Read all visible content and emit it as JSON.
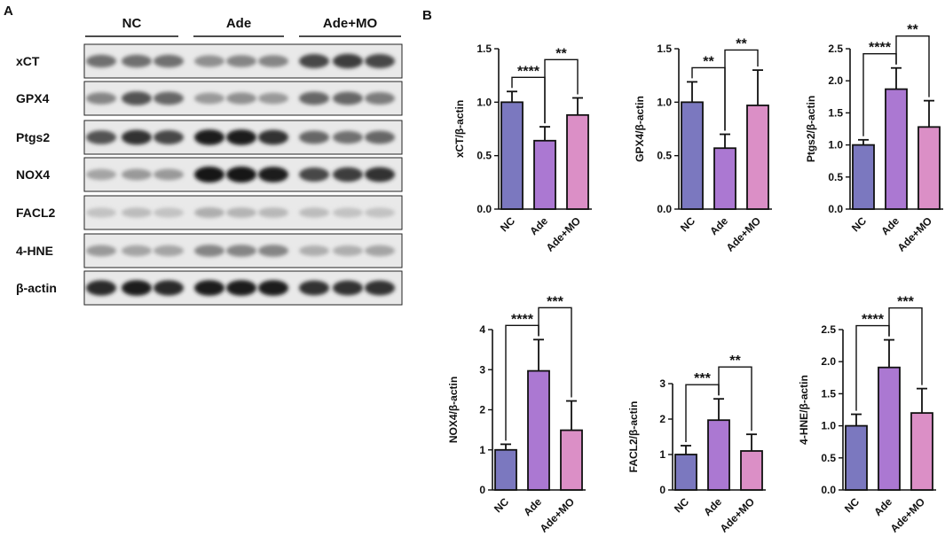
{
  "panel_a": {
    "label": "A",
    "groups": [
      "NC",
      "Ade",
      "Ade+MO"
    ],
    "blots": [
      {
        "name": "xCT",
        "bands": [
          0.55,
          0.55,
          0.55,
          0.4,
          0.45,
          0.45,
          0.75,
          0.8,
          0.75
        ]
      },
      {
        "name": "GPX4",
        "bands": [
          0.45,
          0.7,
          0.6,
          0.35,
          0.4,
          0.35,
          0.6,
          0.6,
          0.5
        ]
      },
      {
        "name": "Ptgs2",
        "bands": [
          0.7,
          0.85,
          0.75,
          0.95,
          0.95,
          0.85,
          0.6,
          0.55,
          0.6
        ]
      },
      {
        "name": "NOX4",
        "bands": [
          0.3,
          0.35,
          0.35,
          1.0,
          1.0,
          0.95,
          0.75,
          0.8,
          0.85
        ]
      },
      {
        "name": "FACL2",
        "bands": [
          0.15,
          0.18,
          0.15,
          0.25,
          0.22,
          0.2,
          0.18,
          0.15,
          0.15
        ]
      },
      {
        "name": "4-HNE",
        "bands": [
          0.35,
          0.3,
          0.3,
          0.45,
          0.45,
          0.45,
          0.25,
          0.25,
          0.3
        ]
      },
      {
        "name": "β-actin",
        "bands": [
          0.9,
          0.95,
          0.9,
          0.95,
          0.95,
          0.95,
          0.85,
          0.85,
          0.85
        ]
      }
    ]
  },
  "panel_b": {
    "label": "B"
  },
  "colors": {
    "NC": "#7b78bf",
    "Ade": "#ab78d2",
    "Ade+MO": "#db8fc6"
  },
  "chart_data": [
    {
      "type": "bar",
      "ylabel": "xCT/β-actin",
      "categories": [
        "NC",
        "Ade",
        "Ade+MO"
      ],
      "values": [
        1.0,
        0.64,
        0.88
      ],
      "errors": [
        0.1,
        0.13,
        0.16
      ],
      "ylim": [
        0,
        1.5
      ],
      "ticks": [
        0,
        0.5,
        1.0,
        1.5
      ],
      "tick_labels": [
        "0.0",
        "0.5",
        "1.0",
        "1.5"
      ],
      "sig": [
        {
          "from": 0,
          "to": 1,
          "label": "****"
        },
        {
          "from": 1,
          "to": 2,
          "label": "**"
        }
      ]
    },
    {
      "type": "bar",
      "ylabel": "GPX4/β-actin",
      "categories": [
        "NC",
        "Ade",
        "Ade+MO"
      ],
      "values": [
        1.0,
        0.57,
        0.97
      ],
      "errors": [
        0.19,
        0.13,
        0.33
      ],
      "ylim": [
        0,
        1.5
      ],
      "ticks": [
        0,
        0.5,
        1.0,
        1.5
      ],
      "tick_labels": [
        "0.0",
        "0.5",
        "1.0",
        "1.5"
      ],
      "sig": [
        {
          "from": 0,
          "to": 1,
          "label": "**"
        },
        {
          "from": 1,
          "to": 2,
          "label": "**"
        }
      ]
    },
    {
      "type": "bar",
      "ylabel": "Ptgs2/β-actin",
      "categories": [
        "NC",
        "Ade",
        "Ade+MO"
      ],
      "values": [
        1.0,
        1.87,
        1.28
      ],
      "errors": [
        0.08,
        0.33,
        0.41
      ],
      "ylim": [
        0,
        2.5
      ],
      "ticks": [
        0,
        0.5,
        1.0,
        1.5,
        2.0,
        2.5
      ],
      "tick_labels": [
        "0.0",
        "0.5",
        "1.0",
        "1.5",
        "2.0",
        "2.5"
      ],
      "sig": [
        {
          "from": 0,
          "to": 1,
          "label": "****"
        },
        {
          "from": 1,
          "to": 2,
          "label": "**"
        }
      ]
    },
    {
      "type": "bar",
      "ylabel": "NOX4/β-actin",
      "categories": [
        "NC",
        "Ade",
        "Ade+MO"
      ],
      "values": [
        1.0,
        2.97,
        1.49
      ],
      "errors": [
        0.14,
        0.78,
        0.73
      ],
      "ylim": [
        0,
        4
      ],
      "ticks": [
        0,
        1,
        2,
        3,
        4
      ],
      "tick_labels": [
        "0",
        "1",
        "2",
        "3",
        "4"
      ],
      "sig": [
        {
          "from": 0,
          "to": 1,
          "label": "****"
        },
        {
          "from": 1,
          "to": 2,
          "label": "***"
        }
      ]
    },
    {
      "type": "bar",
      "ylabel": "FACL2/β-actin",
      "categories": [
        "NC",
        "Ade",
        "Ade+MO"
      ],
      "values": [
        1.0,
        1.97,
        1.1
      ],
      "errors": [
        0.25,
        0.6,
        0.47
      ],
      "ylim": [
        0,
        3
      ],
      "ticks": [
        0,
        1,
        2,
        3
      ],
      "tick_labels": [
        "0",
        "1",
        "2",
        "3"
      ],
      "sig": [
        {
          "from": 0,
          "to": 1,
          "label": "***"
        },
        {
          "from": 1,
          "to": 2,
          "label": "**"
        }
      ]
    },
    {
      "type": "bar",
      "ylabel": "4-HNE/β-actin",
      "categories": [
        "NC",
        "Ade",
        "Ade+MO"
      ],
      "values": [
        1.0,
        1.91,
        1.2
      ],
      "errors": [
        0.18,
        0.43,
        0.38
      ],
      "ylim": [
        0,
        2.5
      ],
      "ticks": [
        0,
        0.5,
        1.0,
        1.5,
        2.0,
        2.5
      ],
      "tick_labels": [
        "0.0",
        "0.5",
        "1.0",
        "1.5",
        "2.0",
        "2.5"
      ],
      "sig": [
        {
          "from": 0,
          "to": 1,
          "label": "****"
        },
        {
          "from": 1,
          "to": 2,
          "label": "***"
        }
      ]
    }
  ]
}
